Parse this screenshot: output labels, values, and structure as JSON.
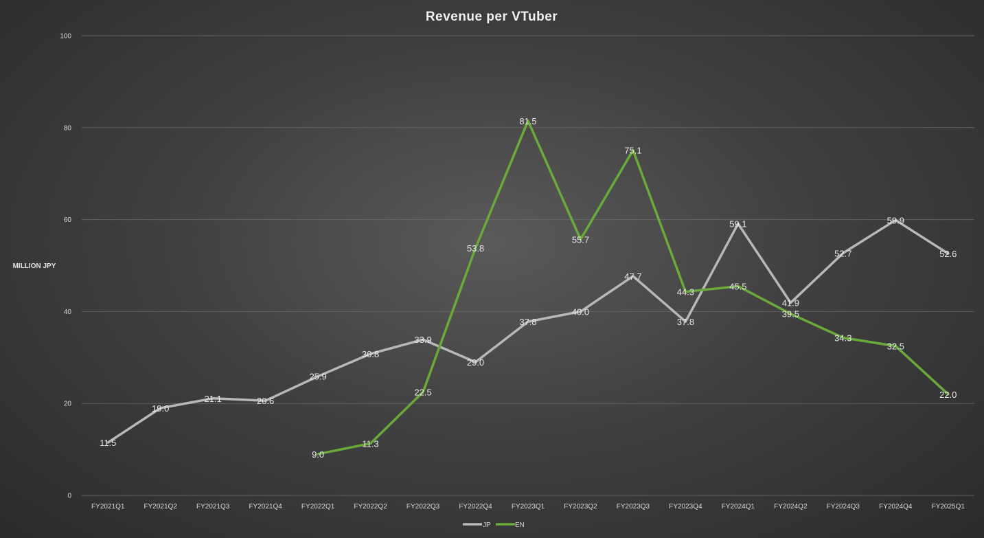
{
  "chart_data": {
    "type": "line",
    "title": "Revenue per VTuber",
    "ylabel": "MILLION JPY",
    "xlabel": "",
    "ylim": [
      0,
      100
    ],
    "yticks": [
      0,
      20,
      40,
      60,
      80,
      100
    ],
    "grid": true,
    "legend_position": "bottom-center",
    "categories": [
      "FY2021Q1",
      "FY2021Q2",
      "FY2021Q3",
      "FY2021Q4",
      "FY2022Q1",
      "FY2022Q2",
      "FY2022Q3",
      "FY2022Q4",
      "FY2023Q1",
      "FY2023Q2",
      "FY2023Q3",
      "FY2023Q4",
      "FY2024Q1",
      "FY2024Q2",
      "FY2024Q3",
      "FY2024Q4",
      "FY2025Q1"
    ],
    "series": [
      {
        "name": "JP",
        "color": "#b8b8b8",
        "values": [
          11.5,
          19.0,
          21.1,
          20.6,
          25.9,
          30.8,
          33.9,
          29.0,
          37.8,
          40.0,
          47.7,
          37.8,
          59.1,
          41.9,
          52.7,
          59.9,
          52.6
        ],
        "labels": [
          "11.5",
          "19.0",
          "21.1",
          "20.6",
          "25.9",
          "30.8",
          "33.9",
          "29.0",
          "37.8",
          "40.0",
          "47.7",
          "37.8",
          "59.1",
          "41.9",
          "52.7",
          "59.9",
          "52.6"
        ]
      },
      {
        "name": "EN",
        "color": "#6aaa3a",
        "values": [
          null,
          null,
          null,
          null,
          9.0,
          11.3,
          22.5,
          53.8,
          81.5,
          55.7,
          75.1,
          44.3,
          45.5,
          39.5,
          34.3,
          32.5,
          22.0
        ],
        "labels": [
          null,
          null,
          null,
          null,
          "9.0",
          "11.3",
          "22.5",
          "53.8",
          "81.5",
          "55.7",
          "75.1",
          "44.3",
          "45.5",
          "39.5",
          "34.3",
          "32.5",
          "22.0"
        ]
      }
    ]
  }
}
